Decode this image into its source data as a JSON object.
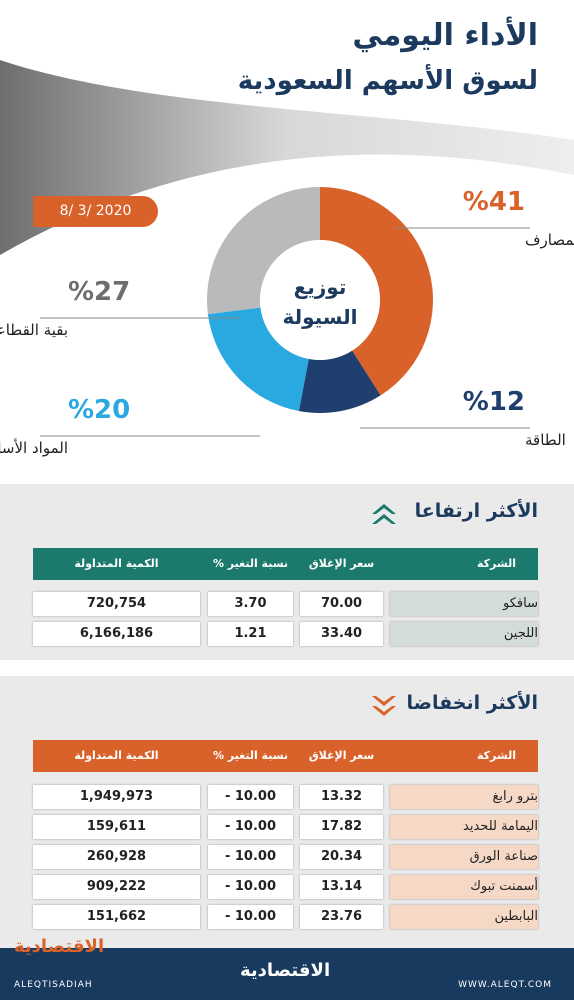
{
  "header": {
    "title": "الأداء اليومي",
    "subtitle": "لسوق الأسهم السعودية",
    "date": "8/ 3/ 2020"
  },
  "chart_data": {
    "type": "pie",
    "center_label": [
      "توزيع",
      "السيولة"
    ],
    "categories": [
      "المصارف",
      "الطاقة",
      "المواد الأساسية",
      "بقية القطاعات"
    ],
    "values": [
      41,
      12,
      20,
      27
    ],
    "value_labels": [
      "%41",
      "%12",
      "%20",
      "%27"
    ],
    "colors": [
      "#d9622b",
      "#1f3f6e",
      "#2aa9e0",
      "#b9babc"
    ]
  },
  "gainers": {
    "title": "الأكثر ارتفاعا",
    "color": "#1b7a6c",
    "company_color": "#d3dbdb",
    "columns": [
      "الشركة",
      "سعر الإغلاق",
      "نسبة التغير %",
      "الكمية المتداولة"
    ],
    "rows": [
      [
        "سافكو",
        "70.00",
        "3.70",
        "720,754"
      ],
      [
        "اللجين",
        "33.40",
        "1.21",
        "6,166,186"
      ]
    ]
  },
  "losers": {
    "title": "الأكثر انخفاضا",
    "color": "#d9622b",
    "company_color": "#f6d8c6",
    "columns": [
      "الشركة",
      "سعر الإغلاق",
      "نسبة التغير %",
      "الكمية المتداولة"
    ],
    "rows": [
      [
        "بترو رابغ",
        "13.32",
        "- 10.00",
        "1,949,973"
      ],
      [
        "اليمامة للحديد",
        "17.82",
        "- 10.00",
        "159,611"
      ],
      [
        "صناعة الورق",
        "20.34",
        "- 10.00",
        "260,928"
      ],
      [
        "أسمنت تبوك",
        "13.14",
        "- 10.00",
        "909,222"
      ],
      [
        "البابطين",
        "23.76",
        "- 10.00",
        "151,662"
      ]
    ]
  },
  "footer": {
    "handle": "ALEQTISADIAH",
    "logo": "الاقتصادية",
    "website": "WWW.ALEQT.COM"
  }
}
